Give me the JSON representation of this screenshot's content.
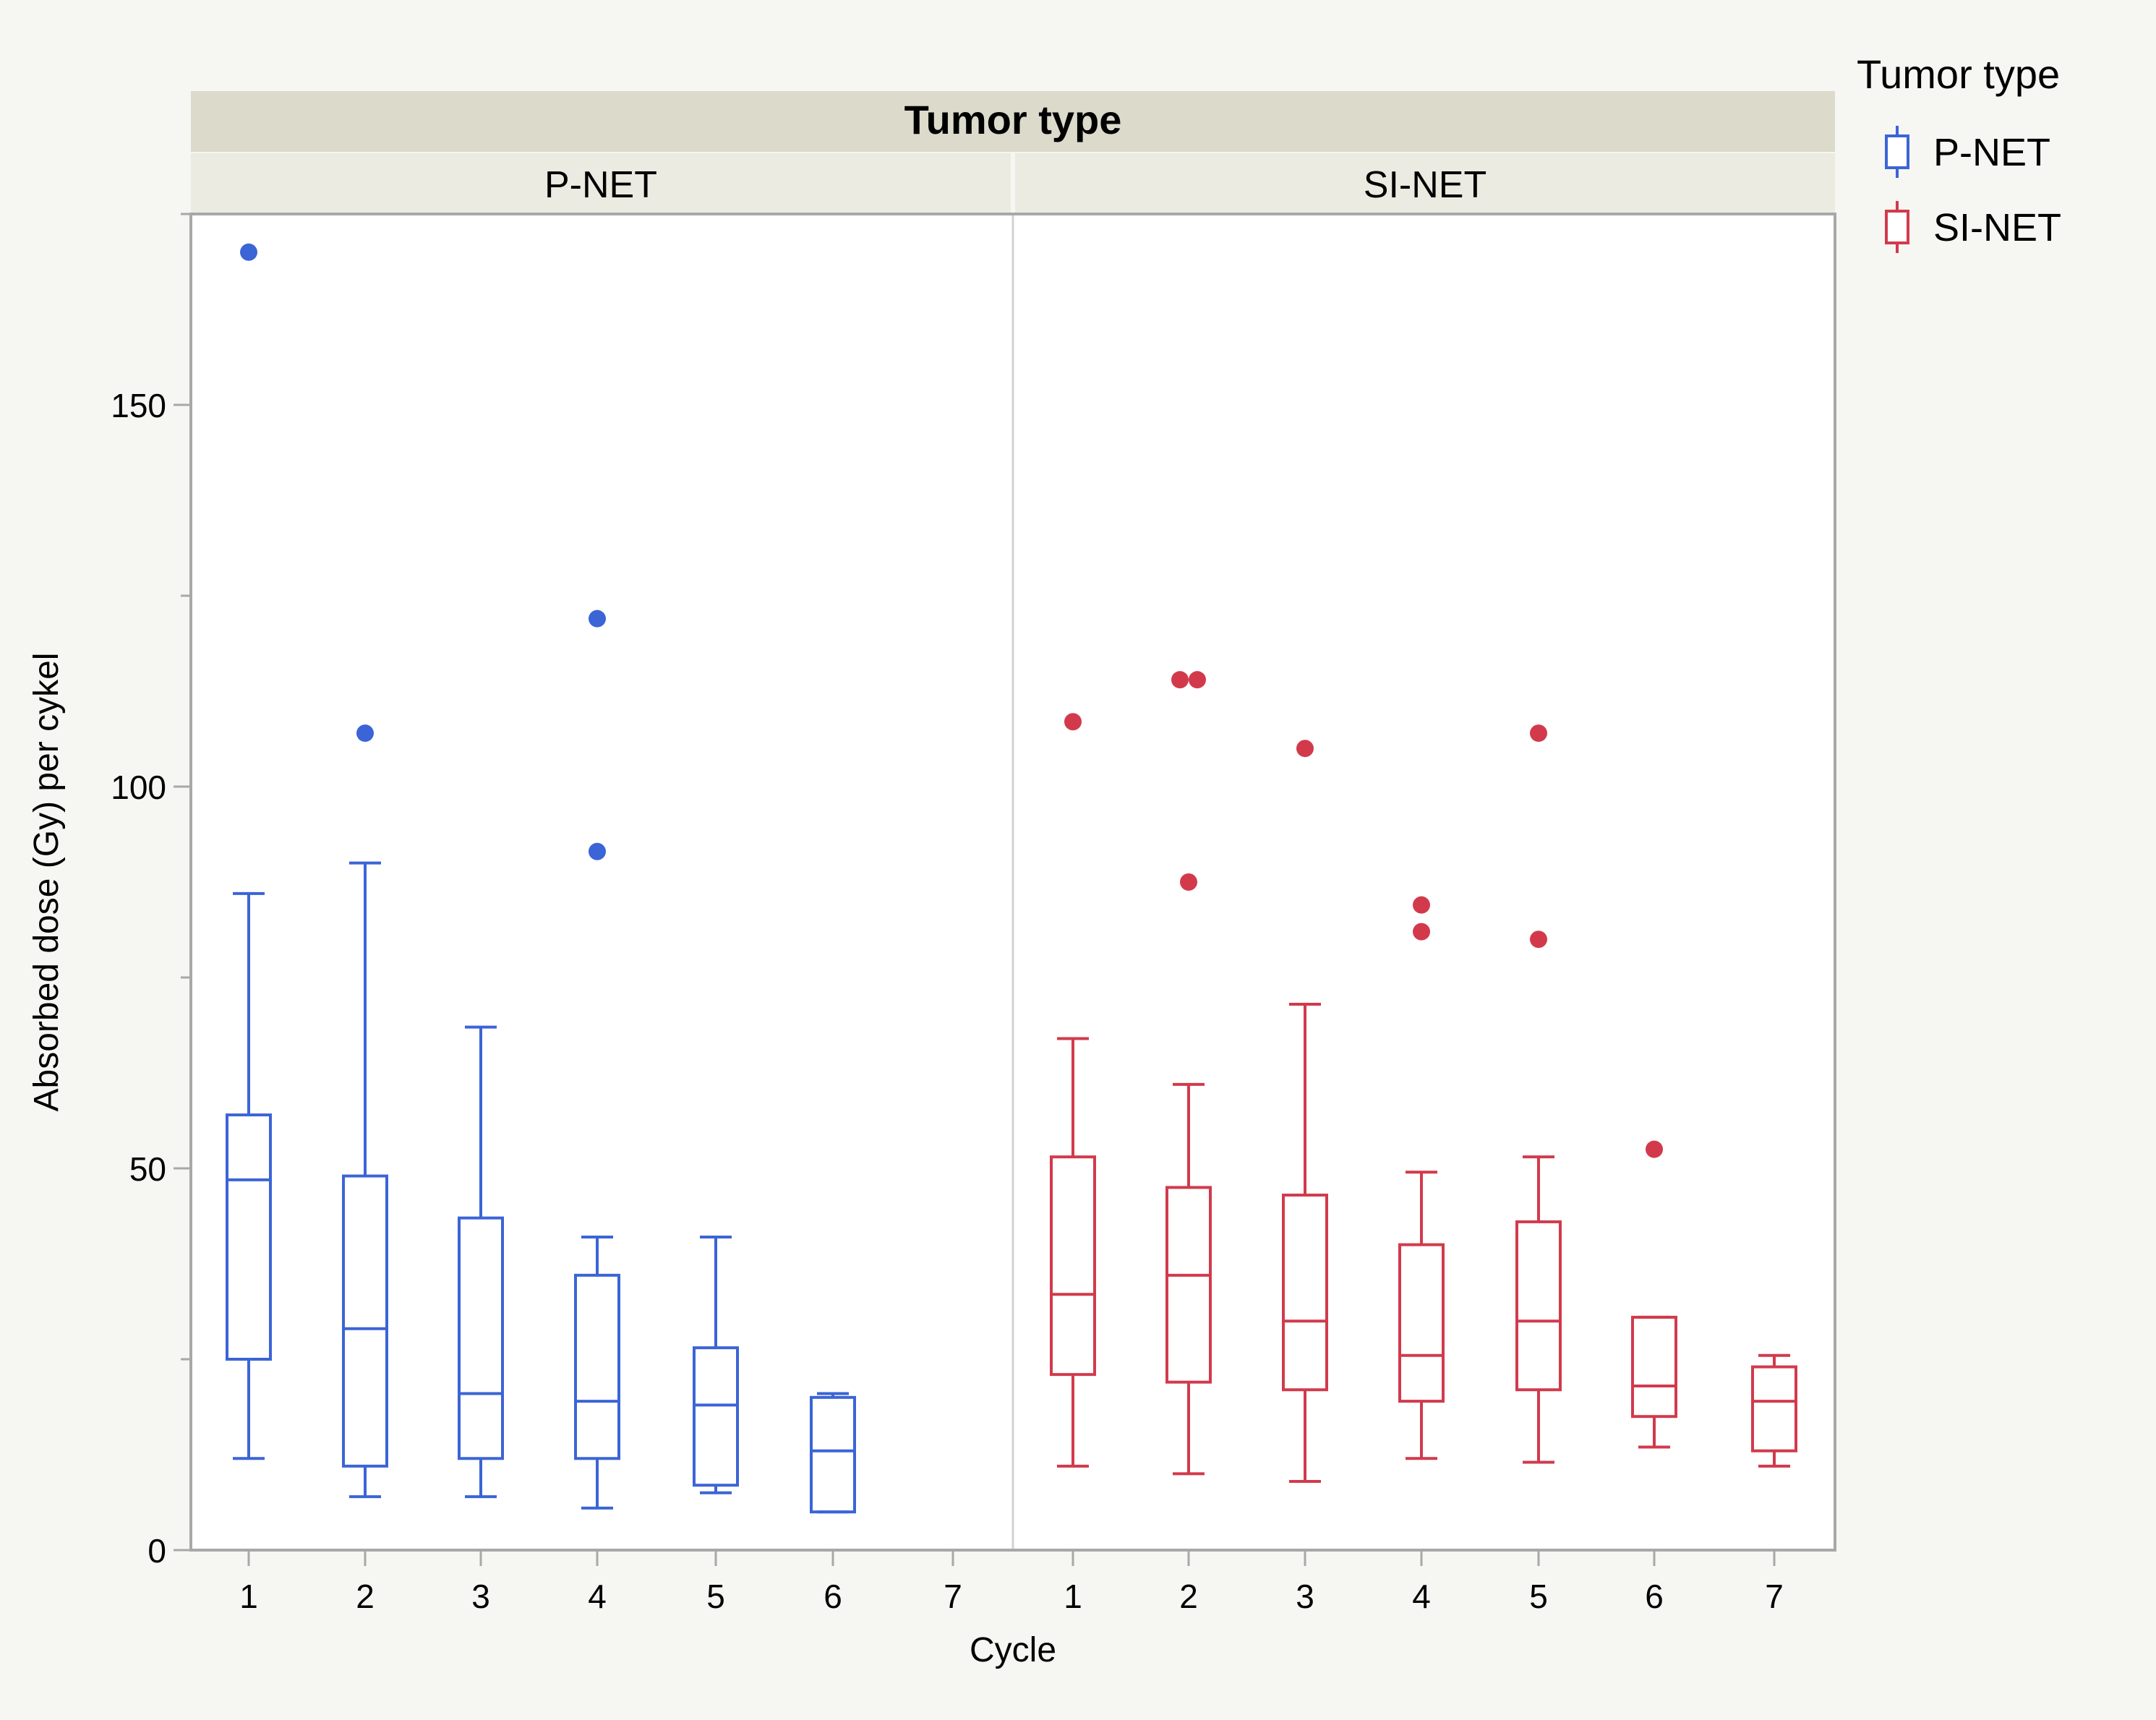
{
  "colors": {
    "page_bg": "#f6f6f2",
    "header_dark": "#dcdacb",
    "header_light": "#ebebe1",
    "frame": "#a8a8a8",
    "divider": "#d2d2d2",
    "text": "#000000",
    "pnet": "#3b64d6",
    "sinet": "#d23a4c"
  },
  "legend": {
    "title": "Tumor type",
    "items": [
      {
        "label": "P-NET",
        "color": "#3b64d6"
      },
      {
        "label": "SI-NET",
        "color": "#d23a4c"
      }
    ]
  },
  "chart_data": {
    "type": "box",
    "title": "Tumor type",
    "xlabel": "Cycle",
    "ylabel": "Absorbed dose (Gy) per cykel",
    "ylim": [
      0,
      175
    ],
    "yticks": [
      0,
      50,
      100,
      150
    ],
    "yminor": [
      25,
      75,
      125
    ],
    "categories": [
      "1",
      "2",
      "3",
      "4",
      "5",
      "6",
      "7"
    ],
    "panels": [
      {
        "name": "P-NET",
        "color": "#3b64d6",
        "boxes": [
          {
            "cycle": "1",
            "whisker_low": 12,
            "q1": 25,
            "median": 48.5,
            "q3": 57,
            "whisker_high": 86,
            "outliers": [
              170
            ]
          },
          {
            "cycle": "2",
            "whisker_low": 7,
            "q1": 11,
            "median": 29,
            "q3": 49,
            "whisker_high": 90,
            "outliers": [
              107
            ]
          },
          {
            "cycle": "3",
            "whisker_low": 7,
            "q1": 12,
            "median": 20.5,
            "q3": 43.5,
            "whisker_high": 68.5,
            "outliers": []
          },
          {
            "cycle": "4",
            "whisker_low": 5.5,
            "q1": 12,
            "median": 19.5,
            "q3": 36,
            "whisker_high": 41,
            "outliers": [
              122,
              91.5
            ]
          },
          {
            "cycle": "5",
            "whisker_low": 7.5,
            "q1": 8.5,
            "median": 19,
            "q3": 26.5,
            "whisker_high": 41,
            "outliers": []
          },
          {
            "cycle": "6",
            "whisker_low": 5,
            "q1": 5,
            "median": 13,
            "q3": 20,
            "whisker_high": 20.5,
            "outliers": []
          }
        ]
      },
      {
        "name": "SI-NET",
        "color": "#d23a4c",
        "boxes": [
          {
            "cycle": "1",
            "whisker_low": 11,
            "q1": 23,
            "median": 33.5,
            "q3": 51.5,
            "whisker_high": 67,
            "outliers": [
              108.5
            ]
          },
          {
            "cycle": "2",
            "whisker_low": 10,
            "q1": 22,
            "median": 36,
            "q3": 47.5,
            "whisker_high": 61,
            "outliers": [
              114,
              114,
              87.5
            ]
          },
          {
            "cycle": "3",
            "whisker_low": 9,
            "q1": 21,
            "median": 30,
            "q3": 46.5,
            "whisker_high": 71.5,
            "outliers": [
              105
            ]
          },
          {
            "cycle": "4",
            "whisker_low": 12,
            "q1": 19.5,
            "median": 25.5,
            "q3": 40,
            "whisker_high": 49.5,
            "outliers": [
              84.5,
              81
            ]
          },
          {
            "cycle": "5",
            "whisker_low": 11.5,
            "q1": 21,
            "median": 30,
            "q3": 43,
            "whisker_high": 51.5,
            "outliers": [
              107,
              80
            ]
          },
          {
            "cycle": "6",
            "whisker_low": 13.5,
            "q1": 17.5,
            "median": 21.5,
            "q3": 30.5,
            "whisker_high": 30.5,
            "outliers": [
              52.5
            ]
          },
          {
            "cycle": "7",
            "whisker_low": 11,
            "q1": 13,
            "median": 19.5,
            "q3": 24,
            "whisker_high": 25.5,
            "outliers": []
          }
        ]
      }
    ]
  }
}
